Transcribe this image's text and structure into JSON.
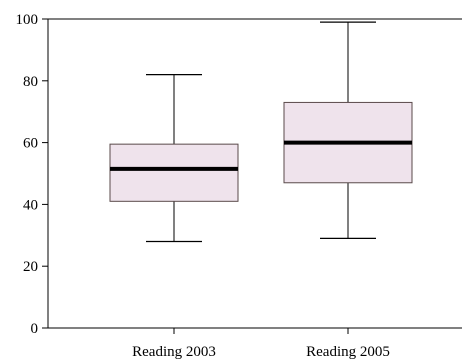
{
  "chart_data": {
    "type": "boxplot",
    "title": "",
    "xlabel": "",
    "ylabel": "",
    "ylim": [
      0,
      100
    ],
    "yticks": [
      0,
      20,
      40,
      60,
      80,
      100
    ],
    "grid": false,
    "legend": "none",
    "categories": [
      "Reading 2003",
      "Reading 2005"
    ],
    "boxes": [
      {
        "category": "Reading 2003",
        "min": 28,
        "q1": 41,
        "median": 51.5,
        "q3": 59.5,
        "max": 82
      },
      {
        "category": "Reading 2005",
        "min": 29,
        "q1": 47,
        "median": 60,
        "q3": 73,
        "max": 99
      }
    ],
    "colors": {
      "box_fill": "#efe3ec",
      "box_stroke": "#5a4a4a",
      "median": "#000000",
      "axis": "#000000"
    }
  }
}
